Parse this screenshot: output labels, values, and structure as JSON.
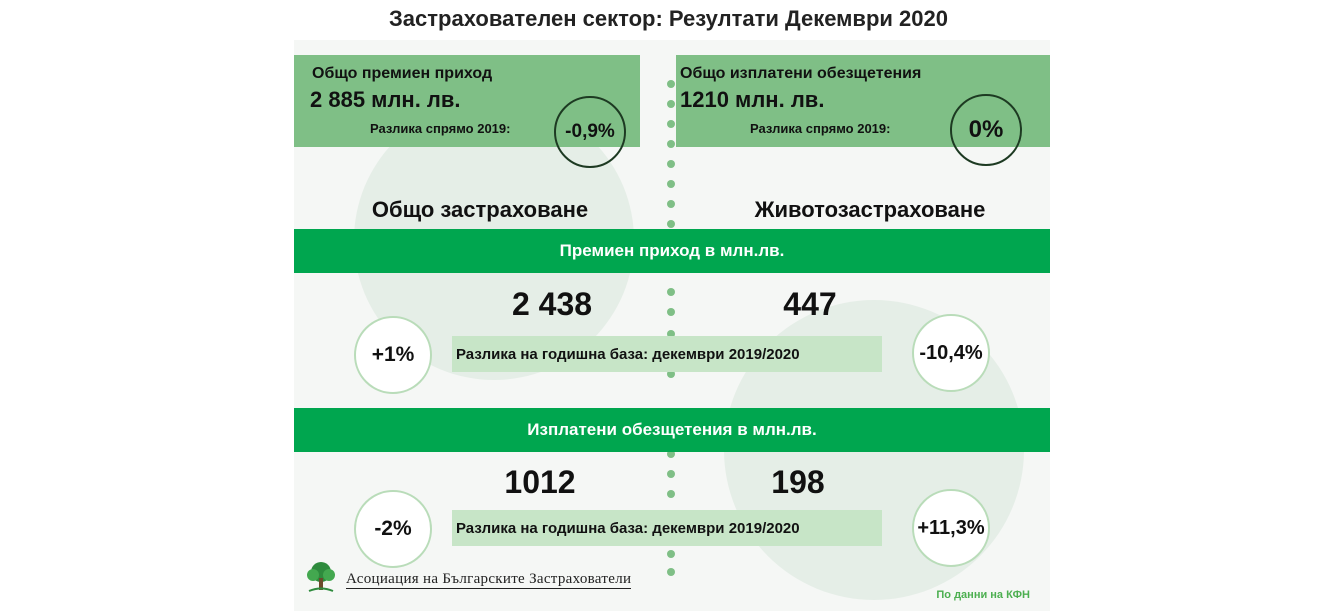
{
  "title": "Застрахователен сектор: Резултати Декември 2020",
  "top_left": {
    "label": "Общо премиен приход",
    "value": "2 885  млн. лв.",
    "diff_label": "Разлика спрямо 2019:",
    "diff_value": "-0,9%"
  },
  "top_right": {
    "label": "Общо изплатени обезщетения",
    "value": "1210  млн. лв.",
    "diff_label": "Разлика спрямо 2019:",
    "diff_value": "0%"
  },
  "columns": {
    "left": "Общо застраховане",
    "right": "Животозастраховане"
  },
  "premium": {
    "band": "Премиен приход в млн.лв.",
    "left_value": "2 438",
    "right_value": "447",
    "left_change": "+1%",
    "right_change": "-10,4%",
    "diff_text": "Разлика на годишна база: декември 2019/2020"
  },
  "claims": {
    "band": "Изплатени обезщетения в млн.лв.",
    "left_value": "1012",
    "right_value": "198",
    "left_change": "-2%",
    "right_change": "+11,3%",
    "diff_text": "Разлика на годишна база: декември  2019/2020"
  },
  "footer": {
    "logo_text": "Асоциация на Българските Застрахователи",
    "logo_icon": "tree-logo-icon",
    "source": "По данни на КФН"
  },
  "colors": {
    "light_green": "#7fbf86",
    "band_green": "#00a64f",
    "diff_green": "#c7e5c7"
  }
}
